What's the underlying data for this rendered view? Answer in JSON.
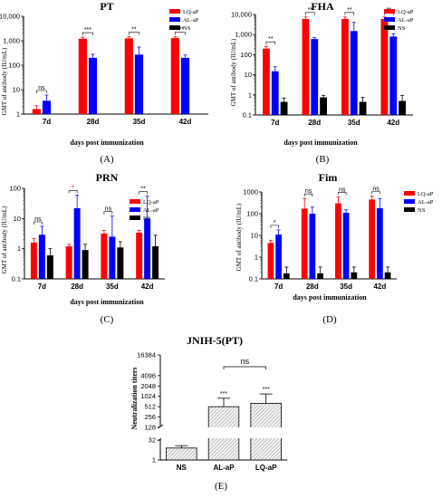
{
  "colors": {
    "LQ-aP": "#ff0000",
    "AL-aP": "#0000ff",
    "NS": "#000000"
  },
  "chart_data": [
    {
      "type": "bar",
      "title": "PT",
      "ylabel": "GMT of antibody (IU/mL)",
      "xlabel": "days post immunization",
      "yscale": "log",
      "ylim": [
        1,
        10000
      ],
      "ytick_labels": [
        "1",
        "10",
        "100",
        "1,000",
        "10,000"
      ],
      "categories": [
        "7d",
        "28d",
        "35d",
        "42d"
      ],
      "series": [
        {
          "name": "LQ-aP",
          "values": [
            1.6,
            1200,
            1250,
            1280
          ],
          "err_hi": [
            2.2,
            1400,
            1450,
            1450
          ]
        },
        {
          "name": "AL-aP",
          "values": [
            3.5,
            200,
            270,
            200
          ],
          "err_hi": [
            6,
            280,
            550,
            260
          ]
        },
        {
          "name": "NS",
          "values": [
            0.45,
            0.65,
            0.15,
            0.12
          ],
          "err_hi": [
            0.75,
            0.9,
            0.4,
            0.4
          ]
        }
      ],
      "significance": [
        "ns",
        "***",
        "**",
        "***"
      ],
      "panel_label": "(A)"
    },
    {
      "type": "bar",
      "title": "FHA",
      "ylabel": "GMT of antibody (IU/mL)",
      "xlabel": "days post immunization",
      "yscale": "log",
      "ylim": [
        0.1,
        10000
      ],
      "ytick_labels": [
        "0.1",
        "1",
        "10",
        "100",
        "1,000",
        "10,000"
      ],
      "categories": [
        "7d",
        "28d",
        "35d",
        "42d"
      ],
      "series": [
        {
          "name": "LQ-aP",
          "values": [
            200,
            6000,
            6000,
            6000
          ],
          "err_hi": [
            260,
            7500,
            7500,
            7500
          ]
        },
        {
          "name": "AL-aP",
          "values": [
            15,
            600,
            1500,
            800
          ],
          "err_hi": [
            25,
            700,
            4000,
            1100
          ]
        },
        {
          "name": "NS",
          "values": [
            0.45,
            0.75,
            0.45,
            0.5
          ],
          "err_hi": [
            0.7,
            0.95,
            0.75,
            0.95
          ]
        }
      ],
      "significance": [
        "**",
        "**",
        "**",
        "**"
      ],
      "panel_label": "(B)"
    },
    {
      "type": "bar",
      "title": "PRN",
      "ylabel": "GMT of antibody (IU/mL)",
      "xlabel": "days post immunization",
      "yscale": "log",
      "ylim": [
        0.1,
        100
      ],
      "ytick_labels": [
        "0.1",
        "1",
        "10",
        "100"
      ],
      "categories": [
        "7d",
        "28d",
        "35d",
        "42d"
      ],
      "series": [
        {
          "name": "LQ-aP",
          "values": [
            1.6,
            1.2,
            3.2,
            3.4
          ],
          "err_hi": [
            2.2,
            1.4,
            4.0,
            4.0
          ]
        },
        {
          "name": "AL-aP",
          "values": [
            2.9,
            22,
            2.5,
            10
          ],
          "err_hi": [
            5.5,
            60,
            12,
            55
          ]
        },
        {
          "name": "NS",
          "values": [
            0.6,
            0.9,
            1.1,
            1.2
          ],
          "err_hi": [
            1.0,
            1.4,
            1.7,
            2.8
          ]
        }
      ],
      "significance": [
        "ns",
        "*",
        "ns",
        "**"
      ],
      "panel_label": "(C)"
    },
    {
      "type": "bar",
      "title": "Fim",
      "ylabel": "GMT of antibody (IU/mL)",
      "xlabel": "days post immunization",
      "yscale": "log",
      "ylim": [
        0.1,
        1000
      ],
      "ytick_labels": [
        "0.1",
        "1",
        "10",
        "100",
        "1000"
      ],
      "categories": [
        "7d",
        "28d",
        "35d",
        "42d"
      ],
      "series": [
        {
          "name": "LQ-aP",
          "values": [
            4.5,
            170,
            300,
            450
          ],
          "err_hi": [
            6,
            500,
            600,
            650
          ]
        },
        {
          "name": "AL-aP",
          "values": [
            11,
            100,
            110,
            180
          ],
          "err_hi": [
            18,
            200,
            150,
            500
          ]
        },
        {
          "name": "NS",
          "values": [
            0.18,
            0.18,
            0.2,
            0.2
          ],
          "err_hi": [
            0.35,
            0.35,
            0.35,
            0.35
          ]
        }
      ],
      "significance": [
        "*",
        "ns",
        "ns",
        "ns"
      ],
      "panel_label": "(D)"
    },
    {
      "type": "bar",
      "title": "JNIH-5(PT)",
      "ylabel": "Neutralization titers",
      "xlabel": "",
      "yscale": "log2",
      "ytick_labels": [
        "1",
        "32",
        "128",
        "256",
        "512",
        "1024",
        "2048",
        "4096",
        "16384"
      ],
      "categories": [
        "NS",
        "AL-aP",
        "LQ-aP"
      ],
      "values": [
        8,
        512,
        640
      ],
      "err_hi": [
        12,
        900,
        1200
      ],
      "significance_labels": [
        "***",
        "***"
      ],
      "comparison": "ns",
      "panel_label": "(E)"
    }
  ]
}
